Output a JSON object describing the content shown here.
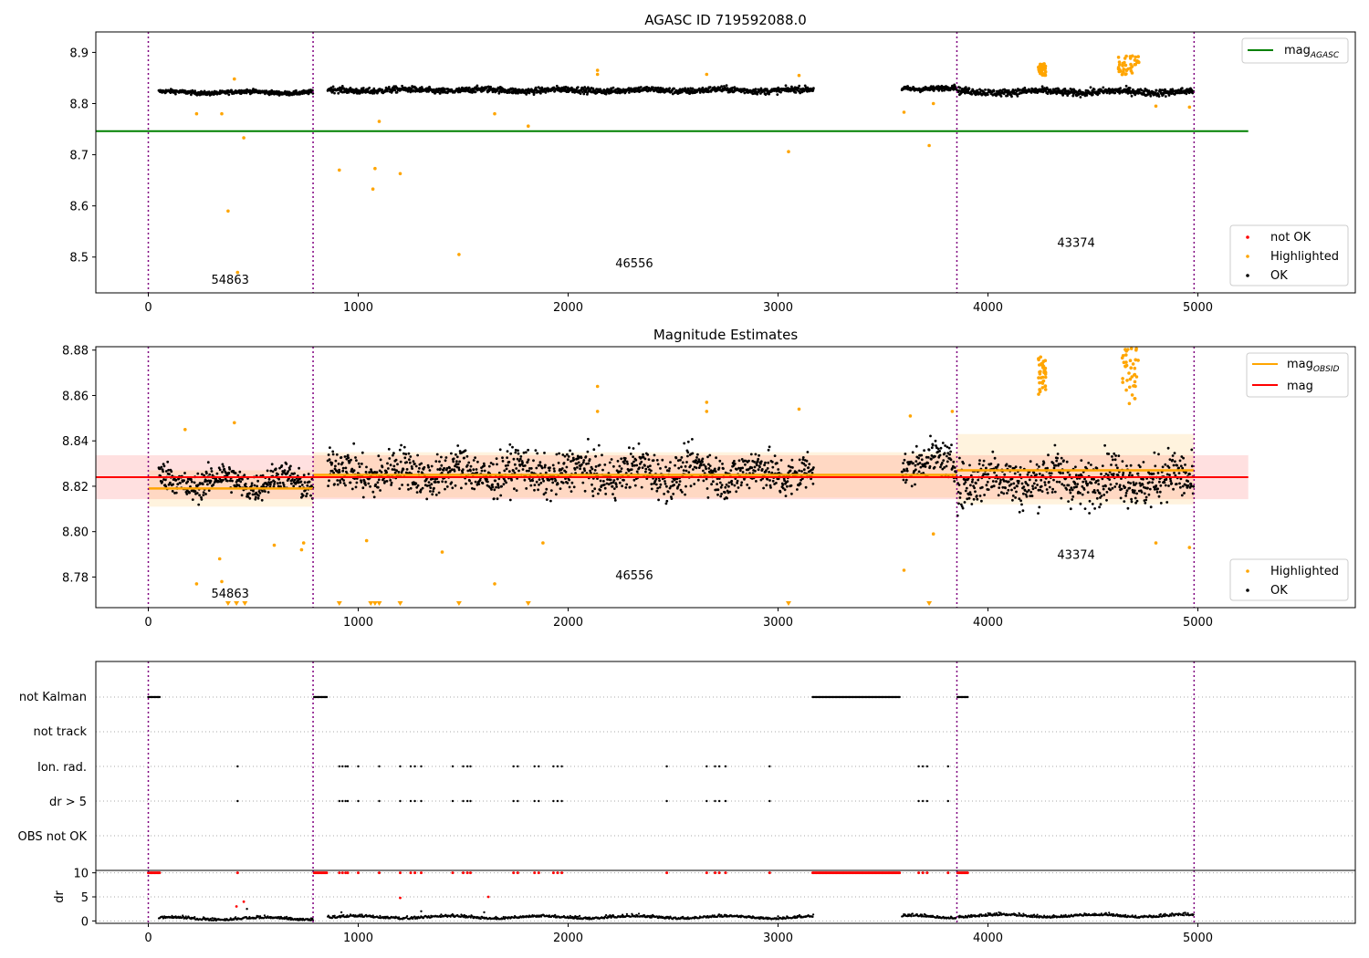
{
  "figure": {
    "panel1": {
      "title": "AGASC ID 719592088.0",
      "legend_lines": [
        {
          "base": "mag",
          "sub": "AGASC",
          "color": "#008000"
        }
      ],
      "legend_points": [
        {
          "label": "not OK",
          "color": "#ff0000"
        },
        {
          "label": "Highlighted",
          "color": "#ffa500"
        },
        {
          "label": "OK",
          "color": "#000000"
        }
      ]
    },
    "panel2": {
      "title": "Magnitude Estimates",
      "legend_lines": [
        {
          "base": "mag",
          "sub": "OBSID",
          "color": "#ffa500"
        },
        {
          "base": "mag",
          "sub": "",
          "color": "#ff0000"
        }
      ],
      "legend_points": [
        {
          "label": "Highlighted",
          "color": "#ffa500"
        },
        {
          "label": "OK",
          "color": "#000000"
        }
      ]
    },
    "panel3": {
      "flag_labels": [
        "not Kalman",
        "not track",
        "Ion. rad.",
        "dr > 5",
        "OBS not OK"
      ]
    },
    "panel4": {
      "ylabel": "dr"
    }
  },
  "chart_data": [
    {
      "type": "scatter",
      "title": "AGASC ID 719592088.0",
      "xlim": [
        -250,
        5750
      ],
      "ylim": [
        8.43,
        8.94
      ],
      "xticks": [
        0,
        1000,
        2000,
        3000,
        4000,
        5000
      ],
      "yticks": [
        8.5,
        8.6,
        8.7,
        8.8,
        8.9
      ],
      "obsid_boundaries": [
        0,
        785,
        3852,
        4982
      ],
      "obsid_labels": [
        {
          "text": "54863",
          "x": 390,
          "y": 8.448
        },
        {
          "text": "46556",
          "x": 2315,
          "y": 8.48
        },
        {
          "text": "43374",
          "x": 4420,
          "y": 8.52
        }
      ],
      "segments": [
        {
          "x": [
            50,
            785
          ],
          "mean": 8.822,
          "spread": 0.004
        },
        {
          "x": [
            855,
            3170
          ],
          "mean": 8.826,
          "spread": 0.006
        },
        {
          "x": [
            3590,
            3850
          ],
          "mean": 8.83,
          "spread": 0.005
        },
        {
          "x": [
            3855,
            4980
          ],
          "mean": 8.823,
          "spread": 0.007
        }
      ],
      "mag_agasc": {
        "value": 8.746,
        "x": [
          -250,
          5240
        ]
      },
      "highlighted_points": [
        {
          "x": 230,
          "y": 8.78
        },
        {
          "x": 350,
          "y": 8.78
        },
        {
          "x": 380,
          "y": 8.59
        },
        {
          "x": 425,
          "y": 8.47
        },
        {
          "x": 455,
          "y": 8.733
        },
        {
          "x": 410,
          "y": 8.848
        },
        {
          "x": 910,
          "y": 8.67
        },
        {
          "x": 1070,
          "y": 8.633
        },
        {
          "x": 1080,
          "y": 8.673
        },
        {
          "x": 1200,
          "y": 8.663
        },
        {
          "x": 1100,
          "y": 8.765
        },
        {
          "x": 1480,
          "y": 8.505
        },
        {
          "x": 1650,
          "y": 8.78
        },
        {
          "x": 1810,
          "y": 8.756
        },
        {
          "x": 2140,
          "y": 8.865
        },
        {
          "x": 2140,
          "y": 8.857
        },
        {
          "x": 2660,
          "y": 8.857
        },
        {
          "x": 3050,
          "y": 8.706
        },
        {
          "x": 3100,
          "y": 8.855
        },
        {
          "x": 3600,
          "y": 8.783
        },
        {
          "x": 3720,
          "y": 8.718
        },
        {
          "x": 3740,
          "y": 8.8
        },
        {
          "x": 4800,
          "y": 8.795
        },
        {
          "x": 4960,
          "y": 8.793
        }
      ],
      "highlighted_clusters": [
        {
          "x": [
            4240,
            4275
          ],
          "y": [
            8.855,
            8.878
          ]
        },
        {
          "x": [
            4620,
            4720
          ],
          "y": [
            8.855,
            8.895
          ]
        }
      ]
    },
    {
      "type": "scatter",
      "title": "Magnitude Estimates",
      "xlim": [
        -250,
        5750
      ],
      "ylim": [
        8.7665,
        8.8815
      ],
      "xticks": [
        0,
        1000,
        2000,
        3000,
        4000,
        5000
      ],
      "yticks": [
        8.78,
        8.8,
        8.82,
        8.84,
        8.86,
        8.88
      ],
      "obsid_boundaries": [
        0,
        785,
        3852,
        4982
      ],
      "obsid_labels": [
        {
          "text": "54863",
          "x": 390,
          "y": 8.771
        },
        {
          "text": "46556",
          "x": 2315,
          "y": 8.779
        },
        {
          "text": "43374",
          "x": 4420,
          "y": 8.788
        }
      ],
      "mag": {
        "value": 8.824,
        "band": [
          8.8143,
          8.8337
        ],
        "x": [
          -250,
          5240
        ]
      },
      "mag_obsid": [
        {
          "x": [
            0,
            785
          ],
          "value": 8.819,
          "band": [
            8.811,
            8.827
          ]
        },
        {
          "x": [
            785,
            3852
          ],
          "value": 8.825,
          "band": [
            8.815,
            8.835
          ]
        },
        {
          "x": [
            3852,
            4982
          ],
          "value": 8.827,
          "band": [
            8.812,
            8.843
          ]
        }
      ],
      "highlighted_points": [
        {
          "x": 175,
          "y": 8.845
        },
        {
          "x": 410,
          "y": 8.848
        },
        {
          "x": 230,
          "y": 8.777
        },
        {
          "x": 350,
          "y": 8.778
        },
        {
          "x": 340,
          "y": 8.788
        },
        {
          "x": 600,
          "y": 8.794
        },
        {
          "x": 730,
          "y": 8.792
        },
        {
          "x": 740,
          "y": 8.795
        },
        {
          "x": 1040,
          "y": 8.796
        },
        {
          "x": 1400,
          "y": 8.791
        },
        {
          "x": 1650,
          "y": 8.777
        },
        {
          "x": 1880,
          "y": 8.795
        },
        {
          "x": 2140,
          "y": 8.864
        },
        {
          "x": 2140,
          "y": 8.853
        },
        {
          "x": 2660,
          "y": 8.857
        },
        {
          "x": 2660,
          "y": 8.853
        },
        {
          "x": 3100,
          "y": 8.854
        },
        {
          "x": 3600,
          "y": 8.783
        },
        {
          "x": 3630,
          "y": 8.851
        },
        {
          "x": 3740,
          "y": 8.799
        },
        {
          "x": 3830,
          "y": 8.853
        },
        {
          "x": 4800,
          "y": 8.795
        },
        {
          "x": 4960,
          "y": 8.793
        }
      ],
      "highlighted_clusters": [
        {
          "x": [
            4240,
            4275
          ],
          "y": [
            8.86,
            8.878
          ]
        },
        {
          "x": [
            4640,
            4720
          ],
          "y": [
            8.856,
            8.881
          ]
        }
      ],
      "below_range_markers": [
        380,
        420,
        460,
        910,
        1060,
        1080,
        1100,
        1200,
        1480,
        1810,
        3050,
        3720
      ]
    },
    {
      "type": "scatter",
      "title": "",
      "xlim": [
        -250,
        5750
      ],
      "categories": [
        "not Kalman",
        "not track",
        "Ion. rad.",
        "dr > 5",
        "OBS not OK"
      ],
      "obsid_boundaries": [
        0,
        785,
        3852,
        4982
      ],
      "not_kalman_ranges": [
        [
          0,
          55
        ],
        [
          790,
          855
        ],
        [
          3165,
          3580
        ],
        [
          3855,
          3905
        ]
      ],
      "ion_rad_x": [
        425,
        910,
        925,
        940,
        950,
        1000,
        1100,
        1200,
        1250,
        1270,
        1300,
        1450,
        1500,
        1520,
        1535,
        1740,
        1760,
        1840,
        1860,
        1930,
        1950,
        1970,
        2470,
        2660,
        2700,
        2720,
        2750,
        2960,
        3670,
        3690,
        3710,
        3810
      ],
      "dr5_x": [
        425,
        910,
        925,
        940,
        950,
        1000,
        1100,
        1200,
        1250,
        1270,
        1300,
        1450,
        1500,
        1520,
        1535,
        1740,
        1760,
        1840,
        1860,
        1930,
        1950,
        1970,
        2470,
        2660,
        2700,
        2720,
        2750,
        2960,
        3670,
        3690,
        3710,
        3810
      ]
    },
    {
      "type": "scatter",
      "title": "",
      "ylabel": "dr",
      "xlim": [
        -250,
        5750
      ],
      "ylim": [
        -0.5,
        10.5
      ],
      "xticks": [
        0,
        1000,
        2000,
        3000,
        4000,
        5000
      ],
      "yticks": [
        0,
        5,
        10
      ],
      "obsid_boundaries": [
        0,
        785,
        3852,
        4982
      ],
      "capped_value": 10,
      "capped_ranges": [
        [
          0,
          55
        ],
        [
          790,
          855
        ],
        [
          3165,
          3580
        ],
        [
          3855,
          3905
        ]
      ],
      "capped_points_x": [
        425,
        910,
        925,
        940,
        950,
        1000,
        1100,
        1200,
        1250,
        1270,
        1300,
        1450,
        1500,
        1520,
        1535,
        1740,
        1760,
        1840,
        1860,
        1930,
        1950,
        1970,
        2470,
        2660,
        2700,
        2720,
        2750,
        2960,
        3670,
        3690,
        3710,
        3810
      ],
      "red_points": [
        {
          "x": 420,
          "y": 3
        },
        {
          "x": 455,
          "y": 4
        },
        {
          "x": 1200,
          "y": 4.8
        },
        {
          "x": 1620,
          "y": 5
        }
      ],
      "black_points": [
        {
          "x": 470,
          "y": 2.5
        },
        {
          "x": 920,
          "y": 1.8
        },
        {
          "x": 1300,
          "y": 2
        },
        {
          "x": 1600,
          "y": 1.8
        }
      ],
      "baseline_segments": [
        {
          "x": [
            50,
            785
          ],
          "mean": 0.3
        },
        {
          "x": [
            855,
            3170
          ],
          "mean": 0.6
        },
        {
          "x": [
            3590,
            3850
          ],
          "mean": 0.7
        },
        {
          "x": [
            3860,
            4980
          ],
          "mean": 0.9
        }
      ]
    }
  ]
}
